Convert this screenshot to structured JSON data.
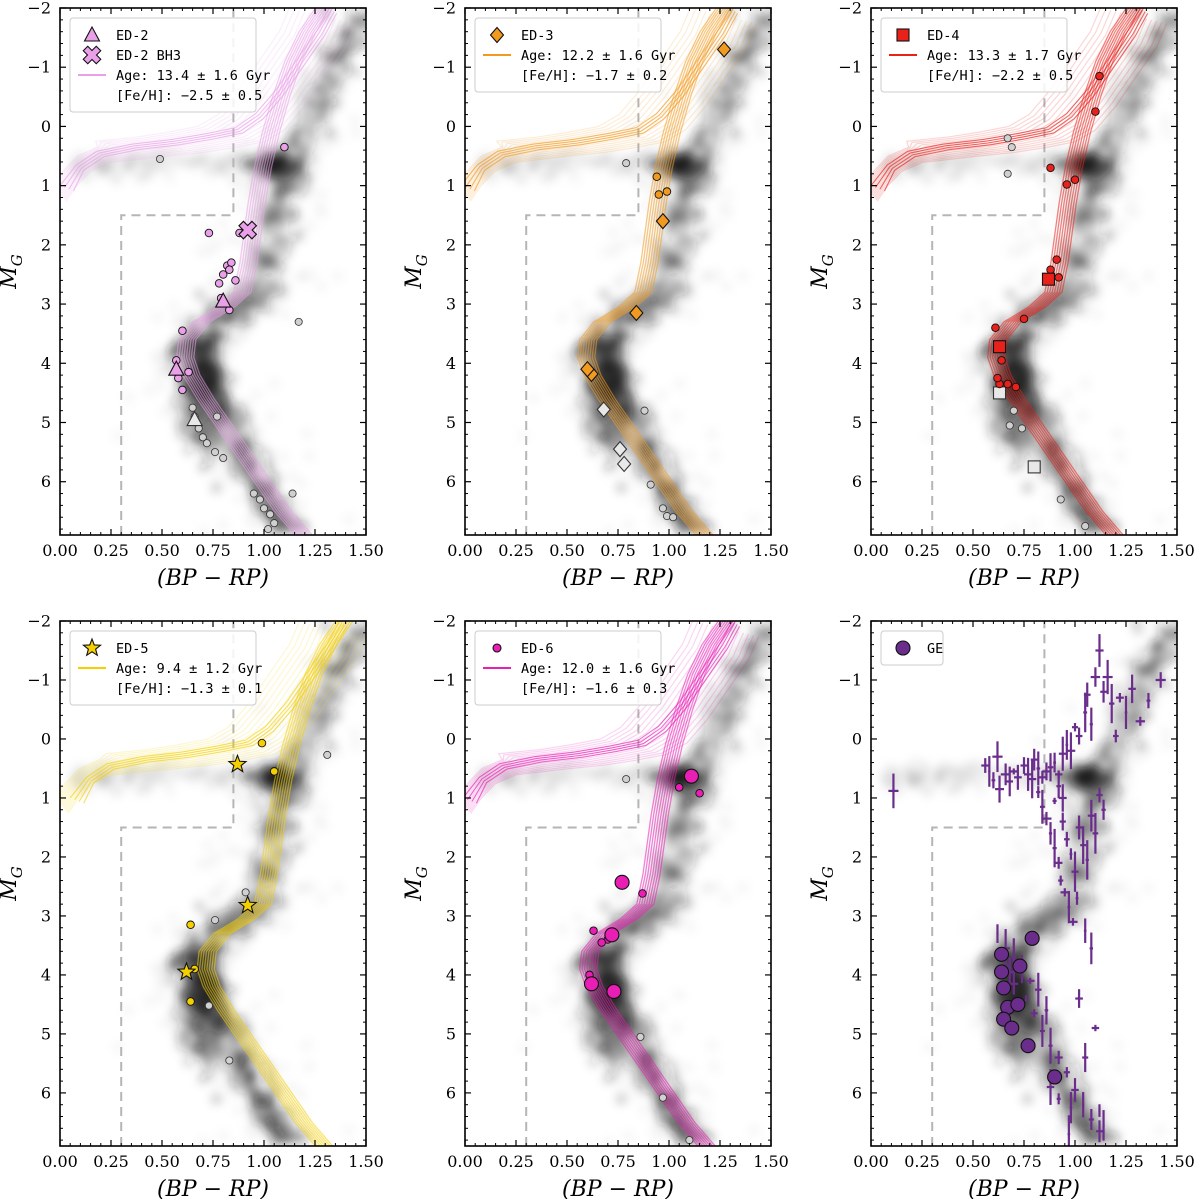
{
  "figure": {
    "xlabel": "(BP − RP)",
    "ylabel_main": "M",
    "ylabel_sub": "G",
    "xlim": [
      0.0,
      1.5
    ],
    "ylim": [
      6.9,
      -2.0
    ],
    "xticks": [
      0.0,
      0.25,
      0.5,
      0.75,
      1.0,
      1.25,
      1.5
    ],
    "xtick_labels": [
      "0.00",
      "0.25",
      "0.50",
      "0.75",
      "1.00",
      "1.25",
      "1.50"
    ],
    "yticks": [
      -2,
      -1,
      0,
      1,
      2,
      3,
      4,
      5,
      6
    ],
    "ytick_labels": [
      "−2",
      "−1",
      "0",
      "1",
      "2",
      "3",
      "4",
      "5",
      "6"
    ],
    "selection_box": [
      [
        0.3,
        6.9
      ],
      [
        0.3,
        1.5
      ],
      [
        0.85,
        1.5
      ],
      [
        0.85,
        -2.0
      ]
    ],
    "background_colors": {
      "density": "#1a1a1a",
      "field_star": "#d0d0d0"
    }
  },
  "chart_data": [
    {
      "type": "scatter",
      "panel": "ED-2",
      "color": "#e9a0e8",
      "edge": "#b070b0",
      "legend": {
        "entries": [
          {
            "label": "ED-2",
            "marker": "triangle"
          },
          {
            "label": "ED-2 BH3",
            "marker": "x"
          },
          {
            "label": "Age: 13.4 ± 1.6 Gyr",
            "marker": "line"
          },
          {
            "label": "[Fe/H]: −2.5 ± 0.5",
            "marker": "none"
          }
        ]
      },
      "isochrone": {
        "offset": 0.0,
        "label": "Age: 13.4 ± 1.6 Gyr"
      },
      "members": [
        [
          0.73,
          1.8
        ],
        [
          0.78,
          2.65
        ],
        [
          0.8,
          2.5
        ],
        [
          0.82,
          2.35
        ],
        [
          0.84,
          2.3
        ],
        [
          0.83,
          2.42
        ],
        [
          0.86,
          2.6
        ],
        [
          0.88,
          1.8
        ],
        [
          0.79,
          2.9
        ],
        [
          0.83,
          3.1
        ],
        [
          0.6,
          3.45
        ],
        [
          0.57,
          3.95
        ],
        [
          0.58,
          4.25
        ],
        [
          0.6,
          4.45
        ],
        [
          1.1,
          0.35
        ],
        [
          0.63,
          4.15
        ]
      ],
      "special_markers": [
        {
          "label": "ED-2",
          "marker": "triangle",
          "points": [
            [
              0.8,
              2.95
            ],
            [
              0.57,
              4.1
            ]
          ]
        },
        {
          "label": "ED-2 BH3",
          "marker": "x",
          "points": [
            [
              0.92,
              1.75
            ]
          ]
        }
      ],
      "gray_markers": [
        [
          0.65,
          4.75
        ],
        [
          0.66,
          4.9
        ],
        [
          0.68,
          5.1
        ],
        [
          0.7,
          5.25
        ],
        [
          0.72,
          5.35
        ],
        [
          0.76,
          5.5
        ],
        [
          0.8,
          5.6
        ],
        [
          0.77,
          4.9
        ],
        [
          0.95,
          6.2
        ],
        [
          0.98,
          6.3
        ],
        [
          1.0,
          6.45
        ],
        [
          1.03,
          6.55
        ],
        [
          1.05,
          6.7
        ],
        [
          1.02,
          6.8
        ],
        [
          1.17,
          3.3
        ],
        [
          1.14,
          6.2
        ],
        [
          0.49,
          0.55
        ]
      ],
      "gray_open_markers": [
        {
          "label": "",
          "marker": "triangle",
          "points": [
            [
              0.66,
              4.95
            ]
          ]
        }
      ]
    },
    {
      "type": "scatter",
      "panel": "ED-3",
      "color": "#f29a1f",
      "edge": "#b86a00",
      "legend": {
        "entries": [
          {
            "label": "ED-3",
            "marker": "diamond"
          },
          {
            "label": "Age: 12.2 ± 1.6 Gyr",
            "marker": "line"
          },
          {
            "label": "[Fe/H]: −1.7 ± 0.2",
            "marker": "none"
          }
        ]
      },
      "isochrone": {
        "offset": -0.02,
        "label": "Age: 12.2 ± 1.6 Gyr"
      },
      "members": [
        [
          0.94,
          0.85
        ],
        [
          0.95,
          1.15
        ],
        [
          0.99,
          1.1
        ]
      ],
      "special_markers": [
        {
          "label": "ED-3",
          "marker": "diamond",
          "points": [
            [
              1.27,
              -1.3
            ],
            [
              0.97,
              1.6
            ],
            [
              0.84,
              3.15
            ],
            [
              0.62,
              4.18
            ],
            [
              0.6,
              4.1
            ]
          ]
        }
      ],
      "gray_markers": [
        [
          0.79,
          0.62
        ],
        [
          0.88,
          4.8
        ],
        [
          0.91,
          6.05
        ],
        [
          0.97,
          6.45
        ],
        [
          0.99,
          6.58
        ],
        [
          1.02,
          6.6
        ]
      ],
      "gray_open_markers": [
        {
          "label": "",
          "marker": "diamond",
          "points": [
            [
              0.68,
              4.78
            ],
            [
              0.76,
              5.45
            ],
            [
              0.78,
              5.7
            ]
          ]
        }
      ]
    },
    {
      "type": "scatter",
      "panel": "ED-4",
      "color": "#e8211b",
      "edge": "#8a0000",
      "legend": {
        "entries": [
          {
            "label": "ED-4",
            "marker": "square"
          },
          {
            "label": "Age: 13.3 ± 1.7 Gyr",
            "marker": "line"
          },
          {
            "label": "[Fe/H]: −2.2 ± 0.5",
            "marker": "none"
          }
        ]
      },
      "isochrone": {
        "offset": 0.0,
        "label": "Age: 13.3 ± 1.7 Gyr"
      },
      "members": [
        [
          1.12,
          -0.85
        ],
        [
          1.1,
          -0.25
        ],
        [
          0.96,
          0.98
        ],
        [
          1.0,
          0.9
        ],
        [
          0.88,
          0.7
        ],
        [
          0.91,
          2.25
        ],
        [
          0.88,
          2.42
        ],
        [
          0.92,
          2.55
        ],
        [
          0.75,
          3.25
        ],
        [
          0.61,
          3.4
        ],
        [
          0.64,
          3.95
        ],
        [
          0.63,
          4.35
        ],
        [
          0.67,
          4.35
        ],
        [
          0.71,
          4.4
        ],
        [
          0.62,
          4.25
        ]
      ],
      "special_markers": [
        {
          "label": "ED-4",
          "marker": "square",
          "points": [
            [
              0.87,
              2.58
            ],
            [
              0.63,
              3.72
            ]
          ]
        }
      ],
      "gray_markers": [
        [
          0.67,
          0.2
        ],
        [
          0.69,
          0.35
        ],
        [
          0.67,
          0.8
        ],
        [
          0.68,
          5.05
        ],
        [
          0.74,
          5.1
        ],
        [
          0.93,
          6.3
        ],
        [
          1.05,
          6.75
        ],
        [
          0.7,
          4.8
        ]
      ],
      "gray_open_markers": [
        {
          "label": "",
          "marker": "square",
          "points": [
            [
              0.63,
              4.5
            ],
            [
              0.8,
              5.75
            ]
          ]
        }
      ]
    },
    {
      "type": "scatter",
      "panel": "ED-5",
      "color": "#f5d000",
      "edge": "#8a7000",
      "legend": {
        "entries": [
          {
            "label": "ED-5",
            "marker": "star"
          },
          {
            "label": "Age: 9.4 ± 1.2 Gyr",
            "marker": "line"
          },
          {
            "label": "[Fe/H]: −1.3 ± 0.1",
            "marker": "none"
          }
        ]
      },
      "isochrone": {
        "offset": 0.05,
        "label": "Age: 9.4 ± 1.2 Gyr"
      },
      "members": [
        [
          0.99,
          0.07
        ],
        [
          1.05,
          0.55
        ],
        [
          0.64,
          3.15
        ],
        [
          0.66,
          3.9
        ],
        [
          0.64,
          4.45
        ]
      ],
      "special_markers": [
        {
          "label": "ED-5",
          "marker": "star",
          "points": [
            [
              0.87,
              0.43
            ],
            [
              0.92,
              2.82
            ],
            [
              0.62,
              3.95
            ]
          ]
        }
      ],
      "gray_markers": [
        [
          1.31,
          0.27
        ],
        [
          0.91,
          2.6
        ],
        [
          0.76,
          3.07
        ],
        [
          0.73,
          4.52
        ],
        [
          0.83,
          5.45
        ]
      ],
      "gray_open_markers": []
    },
    {
      "type": "scatter",
      "panel": "ED-6",
      "color": "#e81eb5",
      "edge": "#7a005a",
      "legend": {
        "entries": [
          {
            "label": "ED-6",
            "marker": "circle"
          },
          {
            "label": "Age: 12.0 ± 1.6 Gyr",
            "marker": "line"
          },
          {
            "label": "[Fe/H]: −1.6 ± 0.3",
            "marker": "none"
          }
        ]
      },
      "isochrone": {
        "offset": -0.01,
        "label": "Age: 12.0 ± 1.6 Gyr"
      },
      "members": [
        [
          1.15,
          0.92
        ],
        [
          1.05,
          0.82
        ],
        [
          0.87,
          2.62
        ],
        [
          0.63,
          3.25
        ],
        [
          0.7,
          3.4
        ],
        [
          0.61,
          4.0
        ],
        [
          0.67,
          3.45
        ]
      ],
      "special_markers": [
        {
          "label": "ED-6",
          "marker": "circle-large",
          "points": [
            [
              1.11,
              0.63
            ],
            [
              0.77,
              2.43
            ],
            [
              0.72,
              3.32
            ],
            [
              0.62,
              4.15
            ],
            [
              0.73,
              4.28
            ]
          ]
        }
      ],
      "gray_markers": [
        [
          0.79,
          0.68
        ],
        [
          0.86,
          5.05
        ],
        [
          0.97,
          6.08
        ],
        [
          1.1,
          6.8
        ]
      ],
      "gray_open_markers": []
    },
    {
      "type": "scatter",
      "panel": "GE",
      "color": "#6a2d8c",
      "edge": "#2a0a40",
      "legend": {
        "entries": [
          {
            "label": "GE",
            "marker": "circle-large"
          }
        ]
      },
      "isochrone": null,
      "members": [],
      "special_markers": [
        {
          "label": "GE",
          "marker": "circle-large",
          "points": [
            [
              0.64,
              3.65
            ],
            [
              0.64,
              3.95
            ],
            [
              0.65,
              4.22
            ],
            [
              0.73,
              3.85
            ],
            [
              0.79,
              3.38
            ],
            [
              0.67,
              4.55
            ],
            [
              0.72,
              4.5
            ],
            [
              0.65,
              4.75
            ],
            [
              0.69,
              4.9
            ],
            [
              0.77,
              5.2
            ],
            [
              0.9,
              5.73
            ]
          ]
        }
      ],
      "error_points": [
        [
          0.11,
          0.88
        ],
        [
          0.56,
          0.45
        ],
        [
          0.58,
          0.55
        ],
        [
          0.6,
          0.7
        ],
        [
          0.62,
          0.3
        ],
        [
          0.63,
          0.85
        ],
        [
          0.66,
          0.6
        ],
        [
          0.68,
          0.72
        ],
        [
          0.7,
          0.55
        ],
        [
          0.72,
          0.65
        ],
        [
          0.75,
          0.45
        ],
        [
          0.77,
          0.6
        ],
        [
          0.79,
          0.68
        ],
        [
          0.8,
          0.35
        ],
        [
          0.82,
          0.5
        ],
        [
          0.84,
          0.65
        ],
        [
          0.86,
          0.55
        ],
        [
          0.88,
          0.48
        ],
        [
          0.9,
          0.4
        ],
        [
          0.92,
          0.6
        ],
        [
          0.94,
          0.25
        ],
        [
          0.96,
          0.1
        ],
        [
          0.98,
          0.2
        ],
        [
          1.0,
          -0.2
        ],
        [
          1.02,
          -0.05
        ],
        [
          1.05,
          -0.45
        ],
        [
          1.06,
          -0.75
        ],
        [
          1.08,
          -0.25
        ],
        [
          1.1,
          -1.05
        ],
        [
          1.12,
          -1.5
        ],
        [
          1.14,
          -0.8
        ],
        [
          1.16,
          -1.05
        ],
        [
          1.18,
          -0.6
        ],
        [
          1.2,
          -0.05
        ],
        [
          1.22,
          -0.7
        ],
        [
          1.25,
          -0.45
        ],
        [
          1.28,
          -0.85
        ],
        [
          1.32,
          -0.3
        ],
        [
          1.36,
          -0.65
        ],
        [
          1.42,
          -1.0
        ],
        [
          0.88,
          1.6
        ],
        [
          0.9,
          1.85
        ],
        [
          0.92,
          2.1
        ],
        [
          0.94,
          1.4
        ],
        [
          0.96,
          1.7
        ],
        [
          0.98,
          1.95
        ],
        [
          1.0,
          2.25
        ],
        [
          1.02,
          1.5
        ],
        [
          1.04,
          1.8
        ],
        [
          1.06,
          2.05
        ],
        [
          1.08,
          1.3
        ],
        [
          1.1,
          1.6
        ],
        [
          1.12,
          0.95
        ],
        [
          1.14,
          1.2
        ],
        [
          0.95,
          2.6
        ],
        [
          0.97,
          2.85
        ],
        [
          0.99,
          3.1
        ],
        [
          0.93,
          2.4
        ],
        [
          1.01,
          2.7
        ],
        [
          1.05,
          3.25
        ],
        [
          1.08,
          3.55
        ],
        [
          0.84,
          1.15
        ],
        [
          0.86,
          1.35
        ],
        [
          0.82,
          0.9
        ],
        [
          0.9,
          1.05
        ],
        [
          0.92,
          0.8
        ],
        [
          0.94,
          1.0
        ],
        [
          0.62,
          3.3
        ],
        [
          0.66,
          3.55
        ],
        [
          0.7,
          3.7
        ],
        [
          0.74,
          3.9
        ],
        [
          0.78,
          4.1
        ],
        [
          0.76,
          4.4
        ],
        [
          0.8,
          4.65
        ],
        [
          0.84,
          4.95
        ],
        [
          0.88,
          5.2
        ],
        [
          0.92,
          5.4
        ],
        [
          0.96,
          5.65
        ],
        [
          1.0,
          5.95
        ],
        [
          1.04,
          6.2
        ],
        [
          1.08,
          6.45
        ],
        [
          1.12,
          6.65
        ],
        [
          0.98,
          6.25
        ],
        [
          0.92,
          6.1
        ],
        [
          0.88,
          5.9
        ],
        [
          1.05,
          5.4
        ],
        [
          1.1,
          4.9
        ],
        [
          1.02,
          4.4
        ],
        [
          0.82,
          4.25
        ],
        [
          0.86,
          4.6
        ],
        [
          0.7,
          4.15
        ],
        [
          0.68,
          3.95
        ],
        [
          1.12,
          6.3
        ],
        [
          0.97,
          6.7
        ],
        [
          1.14,
          6.55
        ]
      ]
    }
  ]
}
